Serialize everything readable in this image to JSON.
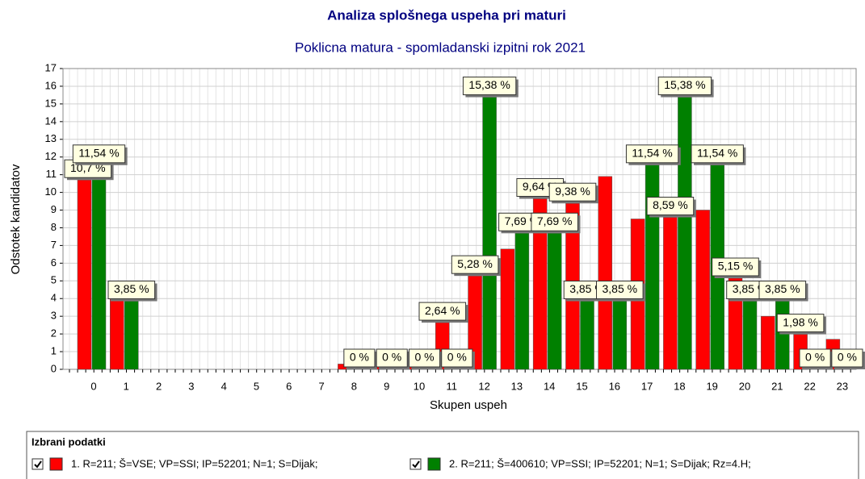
{
  "chart_data": {
    "type": "bar",
    "title": "Analiza splošnega uspeha pri maturi",
    "subtitle": "Poklicna matura - spomladanski izpitni rok 2021",
    "x_label": "Skupen uspeh",
    "y_label": "Odstotek kandidatov",
    "legend_title": "Izbrani podatki",
    "categories": [
      "0",
      "1",
      "2",
      "3",
      "4",
      "5",
      "6",
      "7",
      "8",
      "9",
      "10",
      "11",
      "12",
      "13",
      "14",
      "15",
      "16",
      "17",
      "18",
      "19",
      "20",
      "21",
      "22",
      "23"
    ],
    "series": [
      {
        "name": "1. R=211; Š=VSE; VP=SSI; IP=52201; N=1; S=Dijak;",
        "color": "#ff0000",
        "values": [
          10.7,
          4.6,
          0,
          0,
          0,
          0,
          0,
          0,
          0.3,
          0.66,
          0.4,
          2.64,
          5.28,
          6.8,
          9.64,
          9.38,
          10.9,
          8.5,
          8.59,
          9.0,
          5.15,
          3.0,
          1.98,
          1.7
        ],
        "value_labels": [
          "10,7 %",
          null,
          null,
          null,
          null,
          null,
          null,
          null,
          null,
          null,
          null,
          "2,64 %",
          "5,28 %",
          null,
          "9,64 %",
          "9,38 %",
          null,
          null,
          "8,59 %",
          null,
          "5,15 %",
          null,
          "1,98 %",
          null
        ]
      },
      {
        "name": "2. R=211; Š=400610; VP=SSI; IP=52201; N=1; S=Dijak; Rz=4.H;",
        "color": "#008000",
        "values": [
          11.54,
          3.85,
          0,
          0,
          0,
          0,
          0,
          0,
          0,
          0,
          0,
          0,
          15.38,
          7.69,
          7.69,
          3.85,
          3.85,
          11.54,
          15.38,
          11.54,
          3.85,
          3.85,
          0,
          0
        ],
        "value_labels": [
          "11,54 %",
          "3,85 %",
          null,
          null,
          null,
          null,
          null,
          null,
          "0 %",
          "0 %",
          "0 %",
          "0 %",
          "15,38 %",
          "7,69 %",
          "7,69 %",
          "3,85 %",
          "3,85 %",
          "11,54 %",
          "15,38 %",
          "11,54 %",
          "3,85 %",
          "3,85 %",
          "0 %",
          "0 %"
        ]
      }
    ],
    "ylim": [
      0,
      17
    ],
    "yticks": [
      0,
      1,
      2,
      3,
      4,
      5,
      6,
      7,
      8,
      9,
      10,
      11,
      12,
      13,
      14,
      15,
      16,
      17
    ],
    "grid": true
  }
}
